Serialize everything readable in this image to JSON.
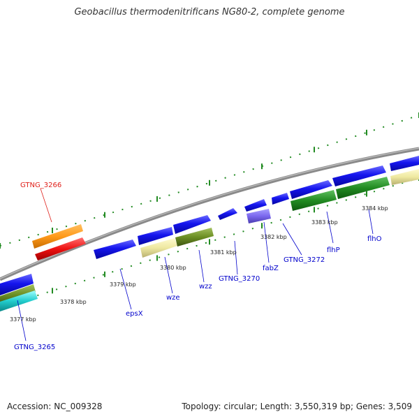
{
  "title": "Geobacillus thermodenitrificans NG80-2, complete genome",
  "footer": {
    "accession": "Accession: NC_009328",
    "summary": "Topology: circular; Length: 3,550,319 bp; Genes: 3,509"
  },
  "colors": {
    "backbone": "#888888",
    "ticks": "#228b22",
    "cds_blue": "#1010e0",
    "highlight_label": "#e0201a",
    "label": "#0000cc",
    "orange": "#ff9a1a",
    "red": "#ee1111",
    "khaki": "#eee8a0",
    "olive": "#6b8e23",
    "green": "#228b22",
    "cyan": "#22cccc",
    "lavender": "#7b68ee"
  },
  "scale_labels": [
    "3377 kbp",
    "3378 kbp",
    "3379 kbp",
    "3380 kbp",
    "3381 kbp",
    "3382 kbp",
    "3383 kbp",
    "3384 kbp"
  ],
  "gene_labels": [
    "GTNG_3266",
    "GTNG_3265",
    "epsX",
    "wze",
    "wzz",
    "GTNG_3270",
    "fabZ",
    "GTNG_3272",
    "flhP",
    "flhO"
  ]
}
